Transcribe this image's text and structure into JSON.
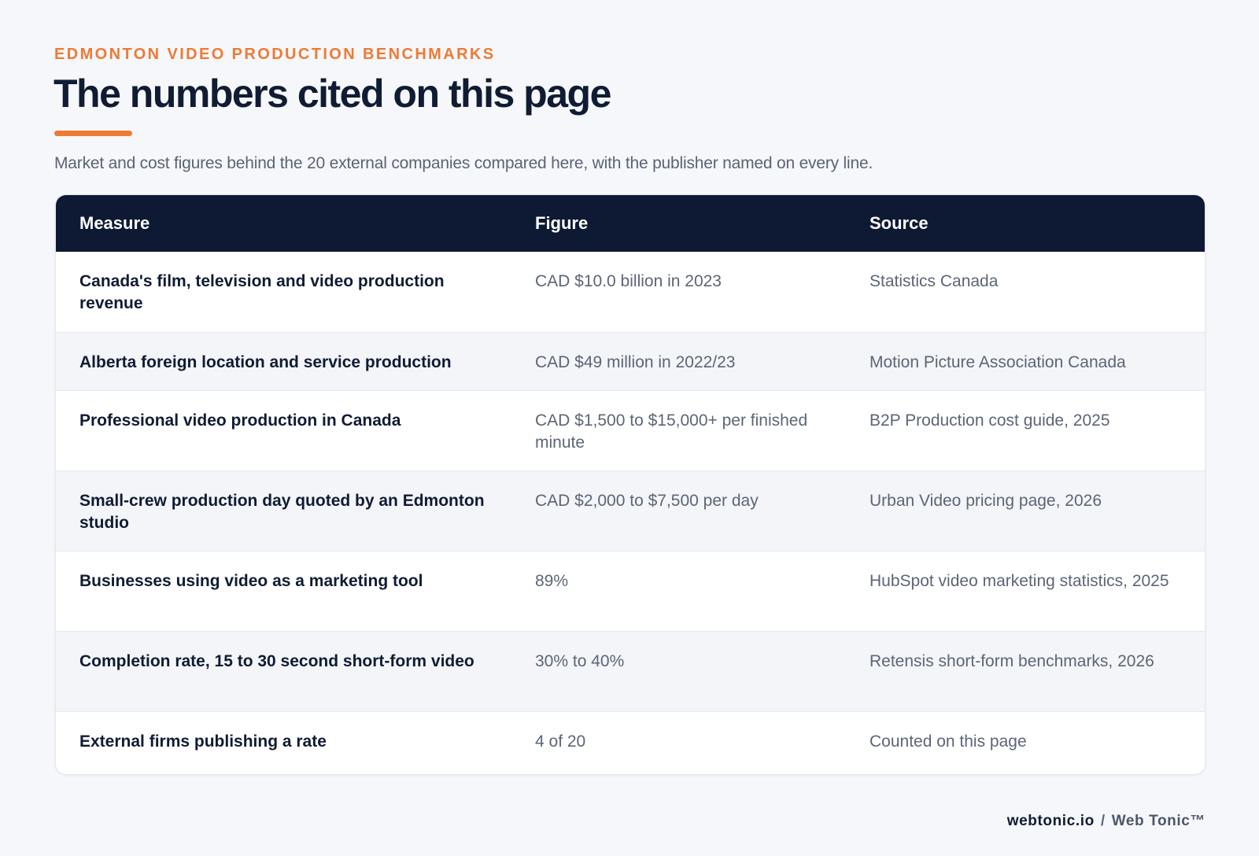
{
  "header": {
    "eyebrow": "EDMONTON VIDEO PRODUCTION BENCHMARKS",
    "title": "The numbers cited on this page",
    "subtitle": "Market and cost figures behind the 20 external companies compared here, with the publisher named on every line."
  },
  "table": {
    "columns": [
      "Measure",
      "Figure",
      "Source"
    ],
    "rows": [
      {
        "measure": "Canada's film, television and video production revenue",
        "figure": "CAD $10.0 billion in 2023",
        "source": "Statistics Canada"
      },
      {
        "measure": "Alberta foreign location and service production",
        "figure": "CAD $49 million in 2022/23",
        "source": "Motion Picture Association Canada"
      },
      {
        "measure": "Professional video production in Canada",
        "figure": "CAD $1,500 to $15,000+ per finished minute",
        "source": "B2P Production cost guide, 2025"
      },
      {
        "measure": "Small-crew production day quoted by an Edmonton studio",
        "figure": "CAD $2,000 to $7,500 per day",
        "source": "Urban Video pricing page, 2026"
      },
      {
        "measure": "Businesses using video as a marketing tool",
        "figure": "89%",
        "source": "HubSpot video marketing statistics, 2025"
      },
      {
        "measure": "Completion rate, 15 to 30 second short-form video",
        "figure": "30% to 40%",
        "source": "Retensis short-form benchmarks, 2026"
      },
      {
        "measure": "External firms publishing a rate",
        "figure": "4 of 20",
        "source": "Counted on this page"
      }
    ]
  },
  "footer": {
    "domain": "webtonic.io",
    "separator": "/",
    "brand": "Web Tonic™"
  },
  "colors": {
    "accent": "#ee7a35",
    "navy": "#0e1a33",
    "muted_text": "#5c6577"
  }
}
